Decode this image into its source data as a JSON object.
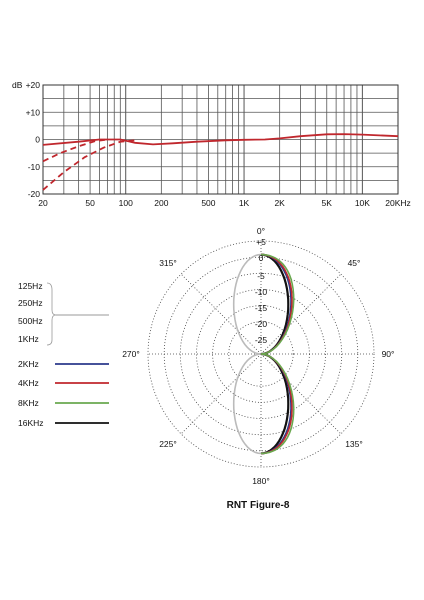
{
  "chart_data": [
    {
      "type": "line",
      "ylabel_prefix": "dB",
      "x_scale": "log",
      "xlim": [
        20,
        20000
      ],
      "ylim": [
        -20,
        20
      ],
      "grid": true,
      "x_ticks": [
        20,
        50,
        100,
        200,
        500,
        1000,
        2000,
        5000,
        10000,
        20000
      ],
      "x_tick_labels": [
        "20",
        "50",
        "100",
        "200",
        "500",
        "1K",
        "2K",
        "5K",
        "10K",
        "20KHz"
      ],
      "y_ticks": [
        20,
        10,
        0,
        -10,
        -20
      ],
      "y_tick_labels": [
        "+20",
        "+10",
        "0",
        "-10",
        "-20"
      ],
      "line_color": "#c0272d",
      "series": [
        {
          "style": "solid",
          "points": [
            [
              20,
              -2
            ],
            [
              40,
              -0.8
            ],
            [
              60,
              0
            ],
            [
              90,
              0
            ],
            [
              120,
              -1.2
            ],
            [
              170,
              -1.8
            ],
            [
              250,
              -1.4
            ],
            [
              400,
              -0.8
            ],
            [
              700,
              -0.3
            ],
            [
              1000,
              -0.1
            ],
            [
              1500,
              0
            ],
            [
              2000,
              0.4
            ],
            [
              3000,
              1.2
            ],
            [
              5000,
              1.9
            ],
            [
              7000,
              2
            ],
            [
              10000,
              1.8
            ],
            [
              20000,
              1.2
            ]
          ]
        },
        {
          "style": "dashed",
          "points": [
            [
              20,
              -8
            ],
            [
              28,
              -5
            ],
            [
              40,
              -2.5
            ],
            [
              55,
              -0.6
            ],
            [
              70,
              0
            ]
          ]
        },
        {
          "style": "dashed",
          "points": [
            [
              20,
              -18.5
            ],
            [
              30,
              -12
            ],
            [
              45,
              -6.5
            ],
            [
              65,
              -3
            ],
            [
              90,
              -0.8
            ],
            [
              120,
              -0.3
            ]
          ]
        }
      ]
    },
    {
      "type": "polar",
      "title": "RNT  Figure-8",
      "angle_labels": [
        {
          "deg": 0,
          "label": "0°"
        },
        {
          "deg": 45,
          "label": "45°"
        },
        {
          "deg": 90,
          "label": "90°"
        },
        {
          "deg": 135,
          "label": "135°"
        },
        {
          "deg": 180,
          "label": "180°"
        },
        {
          "deg": 225,
          "label": "225°"
        },
        {
          "deg": 270,
          "label": "270°"
        },
        {
          "deg": 315,
          "label": "315°"
        }
      ],
      "r_labels": [
        "+5",
        "0",
        "-5",
        "-10",
        "-15",
        "-20",
        "-25"
      ],
      "legend": {
        "low_group": [
          "125Hz",
          "250Hz",
          "500Hz",
          "1KHz"
        ],
        "low_color": "#bbbbbb",
        "entries": [
          {
            "label": "2KHz",
            "color": "#2b3a8c"
          },
          {
            "label": "4KHz",
            "color": "#c0272d"
          },
          {
            "label": "8KHz",
            "color": "#6aa84f"
          },
          {
            "label": "16KHz",
            "color": "#111111"
          }
        ]
      },
      "patterns": [
        {
          "name": "low",
          "color": "#bbbbbb",
          "right_lobe": false,
          "bulge": 0
        },
        {
          "name": "16KHz",
          "color": "#111111",
          "right_lobe": true,
          "bulge": 0.0
        },
        {
          "name": "2KHz",
          "color": "#2b3a8c",
          "right_lobe": true,
          "bulge": 0.1
        },
        {
          "name": "4KHz",
          "color": "#c0272d",
          "right_lobe": true,
          "bulge": 0.14
        },
        {
          "name": "8KHz",
          "color": "#6aa84f",
          "right_lobe": true,
          "bulge": 0.2
        }
      ]
    }
  ]
}
